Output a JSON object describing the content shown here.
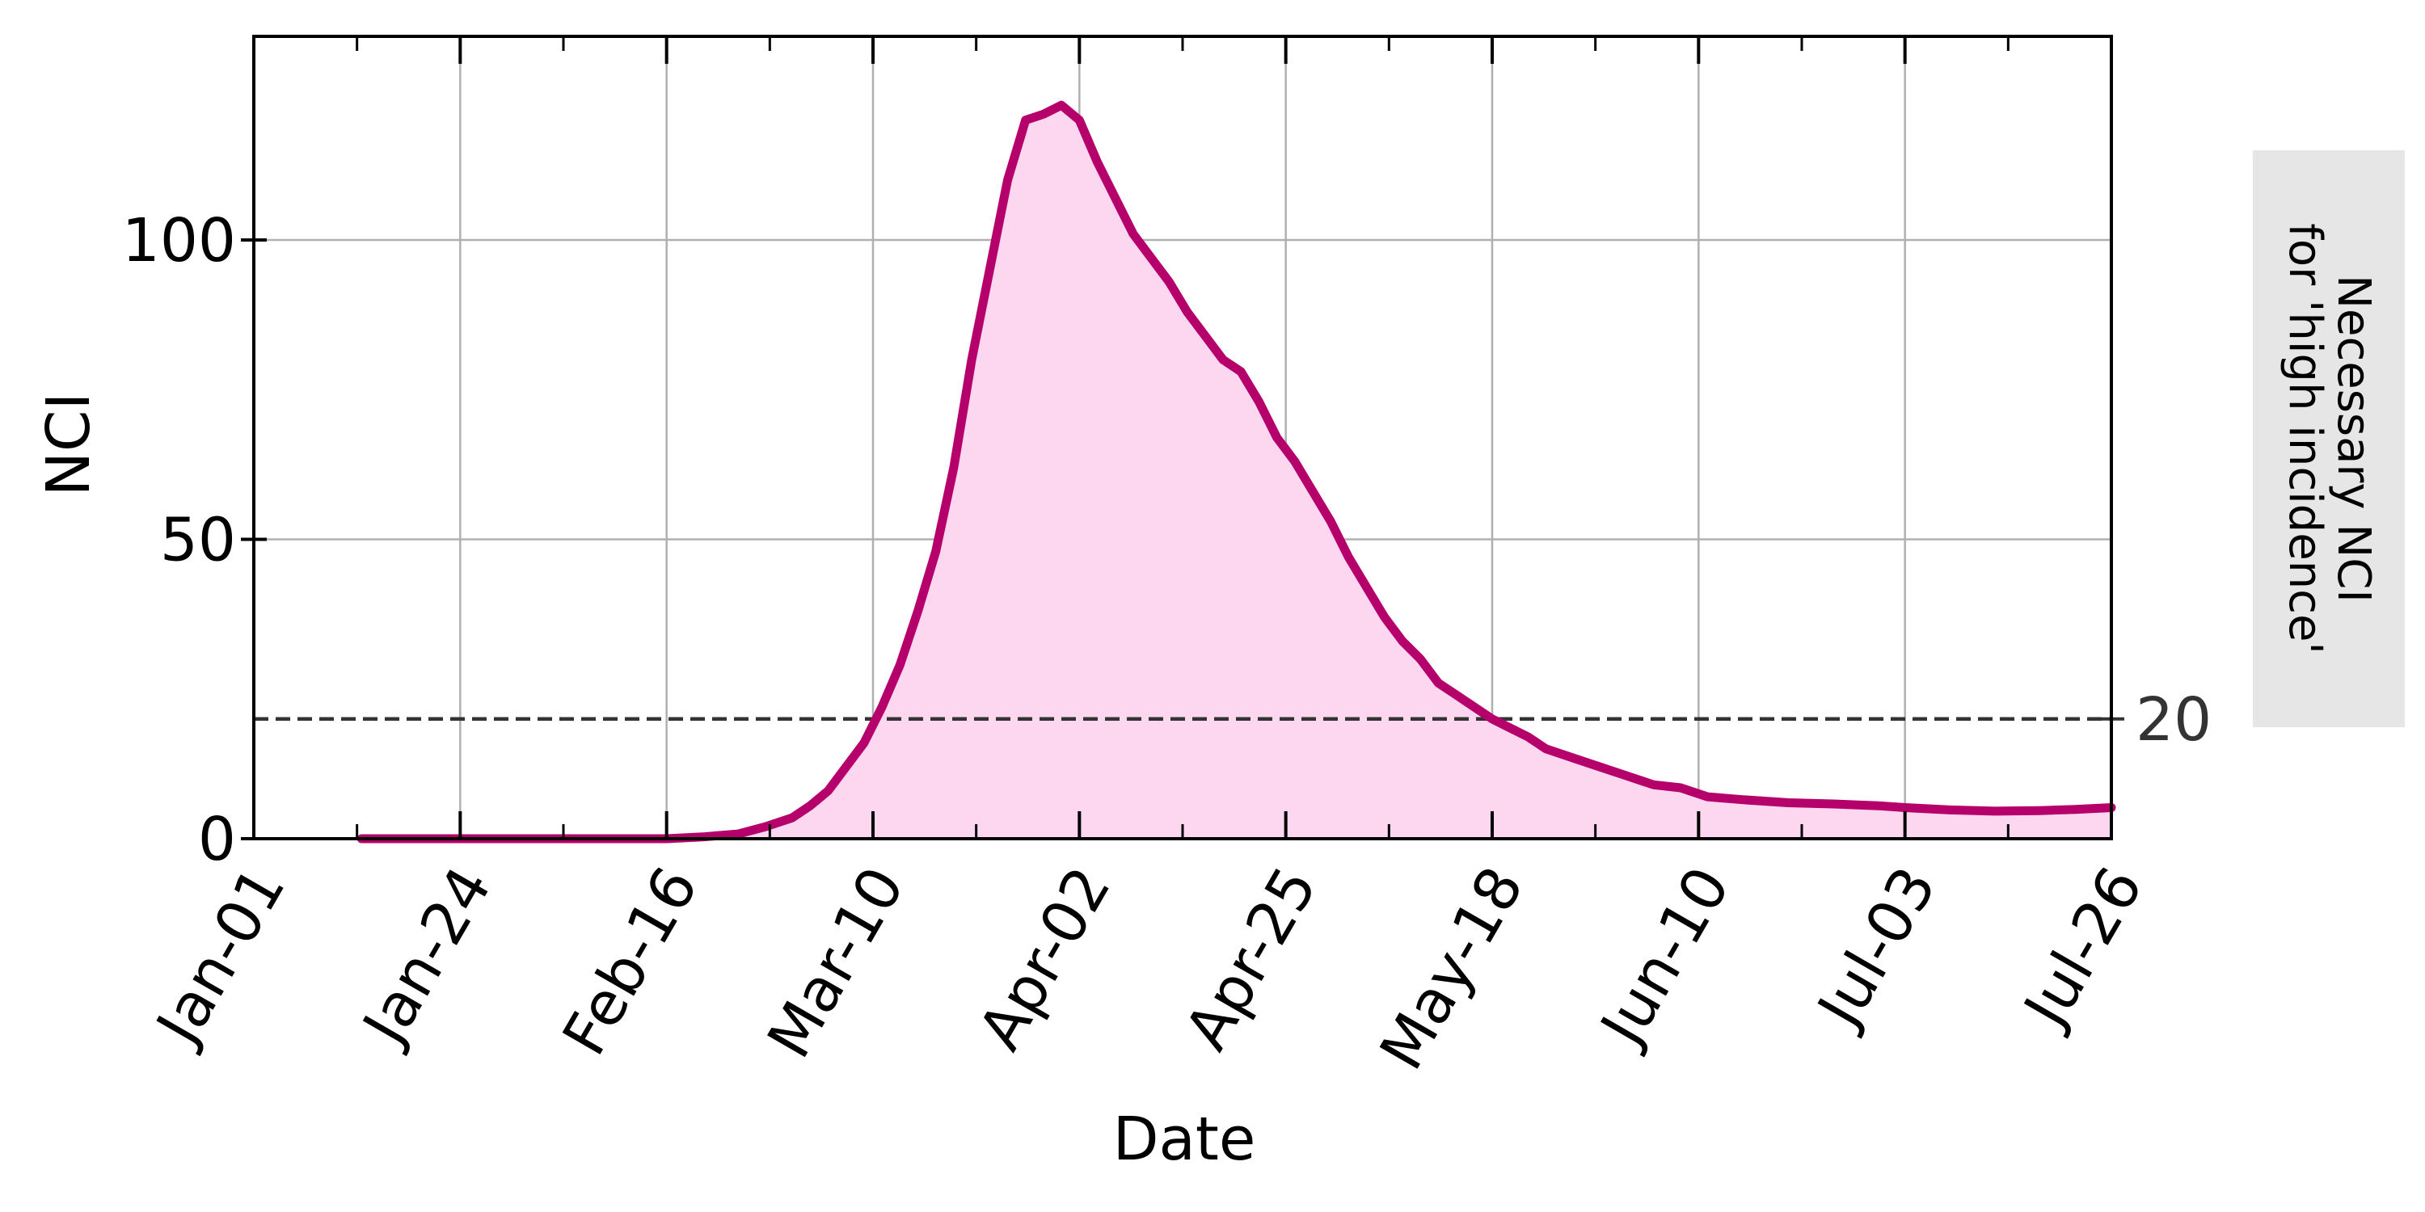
{
  "chart_data": {
    "type": "area",
    "title": "",
    "xlabel": "Date",
    "ylabel": "NCI",
    "x_ticks": [
      "Jan-01",
      "Jan-24",
      "Feb-16",
      "Mar-10",
      "Apr-02",
      "Apr-25",
      "May-18",
      "Jun-10",
      "Jul-03",
      "Jul-26"
    ],
    "y_ticks": [
      0,
      50,
      100
    ],
    "xlim": [
      "Jan-01",
      "Jul-26"
    ],
    "ylim": [
      0,
      134
    ],
    "grid": true,
    "threshold": {
      "value": 20,
      "label": "20",
      "style": "dashed"
    },
    "series": [
      {
        "color": "#b5006b",
        "fill_color": "#fdd6f0",
        "points": [
          [
            "Jan-13",
            0
          ],
          [
            "Feb-16",
            0
          ],
          [
            "Feb-20",
            0.3
          ],
          [
            "Feb-24",
            0.8
          ],
          [
            "Feb-27",
            2
          ],
          [
            "Mar-01",
            3.5
          ],
          [
            "Mar-03",
            5.5
          ],
          [
            "Mar-05",
            8
          ],
          [
            "Mar-07",
            12
          ],
          [
            "Mar-09",
            16
          ],
          [
            "Mar-11",
            22
          ],
          [
            "Mar-13",
            29
          ],
          [
            "Mar-15",
            38
          ],
          [
            "Mar-17",
            48
          ],
          [
            "Mar-19",
            62
          ],
          [
            "Mar-21",
            80
          ],
          [
            "Mar-23",
            95
          ],
          [
            "Mar-25",
            110
          ],
          [
            "Mar-27",
            120
          ],
          [
            "Mar-29",
            121
          ],
          [
            "Mar-31",
            122.5
          ],
          [
            "Apr-02",
            120
          ],
          [
            "Apr-04",
            113
          ],
          [
            "Apr-06",
            107
          ],
          [
            "Apr-08",
            101
          ],
          [
            "Apr-10",
            97
          ],
          [
            "Apr-12",
            93
          ],
          [
            "Apr-14",
            88
          ],
          [
            "Apr-16",
            84
          ],
          [
            "Apr-18",
            80
          ],
          [
            "Apr-20",
            78
          ],
          [
            "Apr-22",
            73
          ],
          [
            "Apr-24",
            67
          ],
          [
            "Apr-26",
            63
          ],
          [
            "Apr-28",
            58
          ],
          [
            "Apr-30",
            53
          ],
          [
            "May-02",
            47
          ],
          [
            "May-04",
            42
          ],
          [
            "May-06",
            37
          ],
          [
            "May-08",
            33
          ],
          [
            "May-10",
            30
          ],
          [
            "May-12",
            26
          ],
          [
            "May-14",
            24
          ],
          [
            "May-16",
            22
          ],
          [
            "May-18",
            20
          ],
          [
            "May-20",
            18.5
          ],
          [
            "May-22",
            17
          ],
          [
            "May-24",
            15
          ],
          [
            "May-27",
            13.5
          ],
          [
            "May-30",
            12
          ],
          [
            "Jun-02",
            10.5
          ],
          [
            "Jun-05",
            9
          ],
          [
            "Jun-08",
            8.5
          ],
          [
            "Jun-11",
            7
          ],
          [
            "Jun-15",
            6.5
          ],
          [
            "Jun-20",
            6
          ],
          [
            "Jun-25",
            5.8
          ],
          [
            "Jun-30",
            5.5
          ],
          [
            "Jul-03",
            5.2
          ],
          [
            "Jul-08",
            4.8
          ],
          [
            "Jul-13",
            4.6
          ],
          [
            "Jul-18",
            4.7
          ],
          [
            "Jul-22",
            4.9
          ],
          [
            "Jul-26",
            5.2
          ]
        ]
      }
    ],
    "side_note": {
      "lines": [
        "Necessary NCI",
        "for 'high incidence'"
      ]
    }
  }
}
